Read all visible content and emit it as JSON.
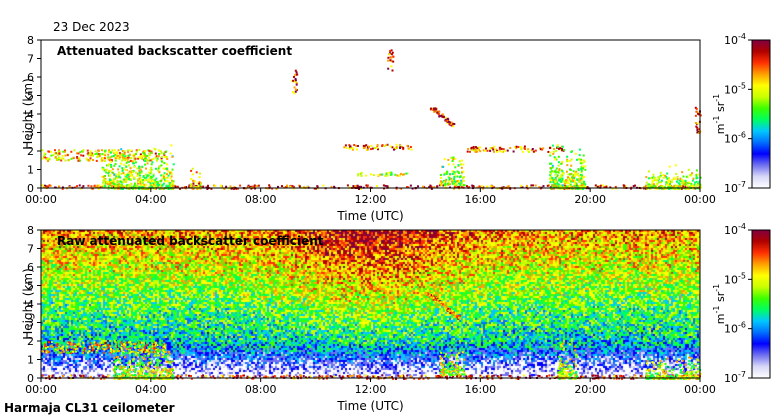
{
  "date_label": "23 Dec 2023",
  "station_label": "Harmaja CL31 ceilometer",
  "colors": {
    "ramp": [
      "#ffffff",
      "#d8d8f8",
      "#7070f0",
      "#0000ff",
      "#0070ff",
      "#00c8ff",
      "#00ff60",
      "#3cff00",
      "#c8ff00",
      "#ffff00",
      "#ffa000",
      "#ff3000",
      "#b00000",
      "#800040"
    ]
  },
  "chart_data": [
    {
      "type": "heatmap",
      "title": "Attenuated backscatter coefficient",
      "xlabel": "Time (UTC)",
      "ylabel": "Height (km)",
      "x_ticks": [
        "00:00",
        "04:00",
        "08:00",
        "12:00",
        "16:00",
        "20:00",
        "00:00"
      ],
      "x_range_hours": [
        0,
        24
      ],
      "y_ticks": [
        0,
        1,
        2,
        3,
        4,
        5,
        6,
        7,
        8
      ],
      "ylim": [
        0,
        8
      ],
      "colorbar": {
        "scale": "log",
        "range": [
          1e-07,
          0.0001
        ],
        "tick_labels": [
          "10-4",
          "10-5",
          "10-6",
          "10-7"
        ],
        "unit_label": "m-1 sr-1"
      },
      "features": [
        {
          "kind": "layer",
          "t0": 0,
          "t1": 24,
          "h0": 0,
          "h1": 0.2,
          "level": 0.85
        },
        {
          "kind": "layer",
          "t0": 0,
          "t1": 4.5,
          "h0": 1.5,
          "h1": 2.1,
          "level": 0.7
        },
        {
          "kind": "column",
          "t0": 2.2,
          "t1": 4.8,
          "h0": 0,
          "h1": 2.4,
          "level": 0.6
        },
        {
          "kind": "column",
          "t0": 5.4,
          "t1": 5.8,
          "h0": 0,
          "h1": 1.2,
          "level": 0.7
        },
        {
          "kind": "patch",
          "t0": 9.1,
          "t1": 9.3,
          "h0": 5.1,
          "h1": 6.4,
          "level": 0.85
        },
        {
          "kind": "patch",
          "t0": 12.6,
          "t1": 12.8,
          "h0": 6.4,
          "h1": 7.5,
          "level": 0.85
        },
        {
          "kind": "layer",
          "t0": 11.0,
          "t1": 13.5,
          "h0": 2.1,
          "h1": 2.4,
          "level": 0.8
        },
        {
          "kind": "layer",
          "t0": 11.5,
          "t1": 13.5,
          "h0": 0.7,
          "h1": 0.9,
          "level": 0.6
        },
        {
          "kind": "slant",
          "t0": 14.2,
          "t1": 15.0,
          "h0": 3.4,
          "h1": 4.4,
          "level": 0.85
        },
        {
          "kind": "column",
          "t0": 14.5,
          "t1": 15.4,
          "h0": 0.2,
          "h1": 1.8,
          "level": 0.6
        },
        {
          "kind": "layer",
          "t0": 15.5,
          "t1": 19.0,
          "h0": 2.0,
          "h1": 2.3,
          "level": 0.8
        },
        {
          "kind": "column",
          "t0": 18.5,
          "t1": 19.8,
          "h0": 0,
          "h1": 2.6,
          "level": 0.6
        },
        {
          "kind": "column",
          "t0": 22.0,
          "t1": 24.0,
          "h0": 0,
          "h1": 1.3,
          "level": 0.6
        },
        {
          "kind": "patch",
          "t0": 23.8,
          "t1": 24.0,
          "h0": 3.0,
          "h1": 4.5,
          "level": 0.85
        }
      ]
    },
    {
      "type": "heatmap",
      "title": "Raw attenuated backscatter coefficient",
      "xlabel": "Time (UTC)",
      "ylabel": "Height (km)",
      "x_ticks": [
        "00:00",
        "04:00",
        "08:00",
        "12:00",
        "16:00",
        "20:00",
        "00:00"
      ],
      "x_range_hours": [
        0,
        24
      ],
      "y_ticks": [
        0,
        1,
        2,
        3,
        4,
        5,
        6,
        7,
        8
      ],
      "ylim": [
        0,
        8
      ],
      "colorbar": {
        "scale": "log",
        "range": [
          1e-07,
          0.0001
        ],
        "tick_labels": [
          "10-4",
          "10-5",
          "10-6",
          "10-7"
        ],
        "unit_label": "m-1 sr-1"
      },
      "features": [
        {
          "kind": "layer",
          "t0": 0,
          "t1": 24,
          "h0": 0,
          "h1": 0.2,
          "level": 0.85
        },
        {
          "kind": "layer",
          "t0": 0,
          "t1": 4.5,
          "h0": 1.4,
          "h1": 2.0,
          "level": 0.7
        },
        {
          "kind": "column",
          "t0": 2.6,
          "t1": 4.8,
          "h0": 0,
          "h1": 2.2,
          "level": 0.6
        },
        {
          "kind": "slant",
          "t0": 14.0,
          "t1": 15.2,
          "h0": 3.3,
          "h1": 4.7,
          "level": 0.75
        },
        {
          "kind": "column",
          "t0": 14.5,
          "t1": 15.4,
          "h0": 0.2,
          "h1": 1.8,
          "level": 0.6
        },
        {
          "kind": "column",
          "t0": 18.8,
          "t1": 19.5,
          "h0": 0,
          "h1": 2.3,
          "level": 0.6
        },
        {
          "kind": "column",
          "t0": 22.0,
          "t1": 24.0,
          "h0": 0,
          "h1": 1.3,
          "level": 0.6
        }
      ]
    }
  ]
}
